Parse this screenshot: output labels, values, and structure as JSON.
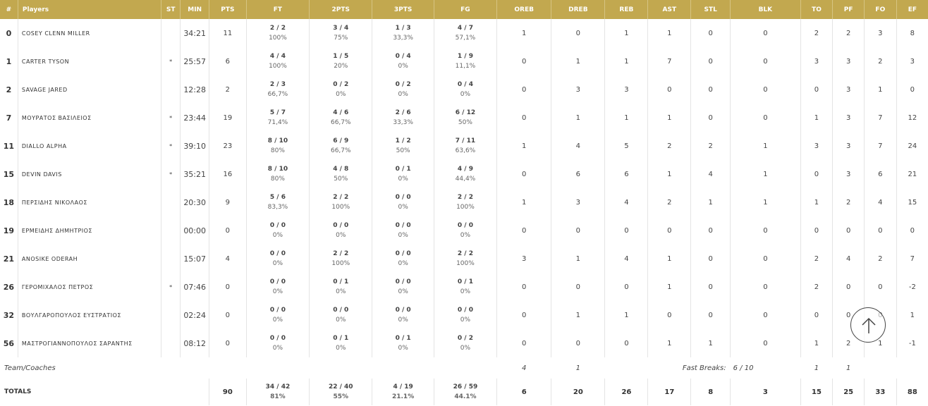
{
  "headers": [
    "#",
    "Players",
    "ST",
    "MIN",
    "PTS",
    "FT",
    "2PTS",
    "3PTS",
    "FG",
    "OREB",
    "DREB",
    "REB",
    "AST",
    "STL",
    "BLK",
    "TO",
    "PF",
    "FO",
    "EF"
  ],
  "players": [
    {
      "num": "0",
      "name": "COSEY CLENN MILLER",
      "st": "",
      "min": "34:21",
      "pts": "11",
      "ft": "2 / 2",
      "ft_pct": "100%",
      "two": "3 / 4",
      "two_pct": "75%",
      "three": "1 / 3",
      "three_pct": "33,3%",
      "fg": "4 / 7",
      "fg_pct": "57,1%",
      "oreb": "1",
      "dreb": "0",
      "reb": "1",
      "ast": "1",
      "stl": "0",
      "blk": "0",
      "to": "2",
      "pf": "2",
      "fo": "3",
      "ef": "8"
    },
    {
      "num": "1",
      "name": "CARTER TYSON",
      "st": "*",
      "min": "25:57",
      "pts": "6",
      "ft": "4 / 4",
      "ft_pct": "100%",
      "two": "1 / 5",
      "two_pct": "20%",
      "three": "0 / 4",
      "three_pct": "0%",
      "fg": "1 / 9",
      "fg_pct": "11,1%",
      "oreb": "0",
      "dreb": "1",
      "reb": "1",
      "ast": "7",
      "stl": "0",
      "blk": "0",
      "to": "3",
      "pf": "3",
      "fo": "2",
      "ef": "3"
    },
    {
      "num": "2",
      "name": "SAVAGE JARED",
      "st": "",
      "min": "12:28",
      "pts": "2",
      "ft": "2 / 3",
      "ft_pct": "66,7%",
      "two": "0 / 2",
      "two_pct": "0%",
      "three": "0 / 2",
      "three_pct": "0%",
      "fg": "0 / 4",
      "fg_pct": "0%",
      "oreb": "0",
      "dreb": "3",
      "reb": "3",
      "ast": "0",
      "stl": "0",
      "blk": "0",
      "to": "0",
      "pf": "3",
      "fo": "1",
      "ef": "0"
    },
    {
      "num": "7",
      "name": "ΜΟΥΡΑΤΟΣ ΒΑΣΙΛΕΙΟΣ",
      "st": "*",
      "min": "23:44",
      "pts": "19",
      "ft": "5 / 7",
      "ft_pct": "71,4%",
      "two": "4 / 6",
      "two_pct": "66,7%",
      "three": "2 / 6",
      "three_pct": "33,3%",
      "fg": "6 / 12",
      "fg_pct": "50%",
      "oreb": "0",
      "dreb": "1",
      "reb": "1",
      "ast": "1",
      "stl": "0",
      "blk": "0",
      "to": "1",
      "pf": "3",
      "fo": "7",
      "ef": "12"
    },
    {
      "num": "11",
      "name": "DIALLO ALPHA",
      "st": "*",
      "min": "39:10",
      "pts": "23",
      "ft": "8 / 10",
      "ft_pct": "80%",
      "two": "6 / 9",
      "two_pct": "66,7%",
      "three": "1 / 2",
      "three_pct": "50%",
      "fg": "7 / 11",
      "fg_pct": "63,6%",
      "oreb": "1",
      "dreb": "4",
      "reb": "5",
      "ast": "2",
      "stl": "2",
      "blk": "1",
      "to": "3",
      "pf": "3",
      "fo": "7",
      "ef": "24"
    },
    {
      "num": "15",
      "name": "DEVIN DAVIS",
      "st": "*",
      "min": "35:21",
      "pts": "16",
      "ft": "8 / 10",
      "ft_pct": "80%",
      "two": "4 / 8",
      "two_pct": "50%",
      "three": "0 / 1",
      "three_pct": "0%",
      "fg": "4 / 9",
      "fg_pct": "44,4%",
      "oreb": "0",
      "dreb": "6",
      "reb": "6",
      "ast": "1",
      "stl": "4",
      "blk": "1",
      "to": "0",
      "pf": "3",
      "fo": "6",
      "ef": "21"
    },
    {
      "num": "18",
      "name": "ΠΕΡΣΙΔΗΣ ΝΙΚΟΛΑΟΣ",
      "st": "",
      "min": "20:30",
      "pts": "9",
      "ft": "5 / 6",
      "ft_pct": "83,3%",
      "two": "2 / 2",
      "two_pct": "100%",
      "three": "0 / 0",
      "three_pct": "0%",
      "fg": "2 / 2",
      "fg_pct": "100%",
      "oreb": "1",
      "dreb": "3",
      "reb": "4",
      "ast": "2",
      "stl": "1",
      "blk": "1",
      "to": "1",
      "pf": "2",
      "fo": "4",
      "ef": "15"
    },
    {
      "num": "19",
      "name": "ΕΡΜΕΙΔΗΣ ΔΗΜΗΤΡΙΟΣ",
      "st": "",
      "min": "00:00",
      "pts": "0",
      "ft": "0 / 0",
      "ft_pct": "0%",
      "two": "0 / 0",
      "two_pct": "0%",
      "three": "0 / 0",
      "three_pct": "0%",
      "fg": "0 / 0",
      "fg_pct": "0%",
      "oreb": "0",
      "dreb": "0",
      "reb": "0",
      "ast": "0",
      "stl": "0",
      "blk": "0",
      "to": "0",
      "pf": "0",
      "fo": "0",
      "ef": "0"
    },
    {
      "num": "21",
      "name": "ANOSIKE ODERAH",
      "st": "",
      "min": "15:07",
      "pts": "4",
      "ft": "0 / 0",
      "ft_pct": "0%",
      "two": "2 / 2",
      "two_pct": "100%",
      "three": "0 / 0",
      "three_pct": "0%",
      "fg": "2 / 2",
      "fg_pct": "100%",
      "oreb": "3",
      "dreb": "1",
      "reb": "4",
      "ast": "1",
      "stl": "0",
      "blk": "0",
      "to": "2",
      "pf": "4",
      "fo": "2",
      "ef": "7"
    },
    {
      "num": "26",
      "name": "ΓΕΡΟΜΙΧΑΛΟΣ ΠΕΤΡΟΣ",
      "st": "*",
      "min": "07:46",
      "pts": "0",
      "ft": "0 / 0",
      "ft_pct": "0%",
      "two": "0 / 1",
      "two_pct": "0%",
      "three": "0 / 0",
      "three_pct": "0%",
      "fg": "0 / 1",
      "fg_pct": "0%",
      "oreb": "0",
      "dreb": "0",
      "reb": "0",
      "ast": "1",
      "stl": "0",
      "blk": "0",
      "to": "2",
      "pf": "0",
      "fo": "0",
      "ef": "-2"
    },
    {
      "num": "32",
      "name": "ΒΟΥΛΓΑΡΟΠΟΥΛΟΣ ΕΥΣΤΡΑΤΙΟΣ",
      "st": "",
      "min": "02:24",
      "pts": "0",
      "ft": "0 / 0",
      "ft_pct": "0%",
      "two": "0 / 0",
      "two_pct": "0%",
      "three": "0 / 0",
      "three_pct": "0%",
      "fg": "0 / 0",
      "fg_pct": "0%",
      "oreb": "0",
      "dreb": "1",
      "reb": "1",
      "ast": "0",
      "stl": "0",
      "blk": "0",
      "to": "0",
      "pf": "0",
      "fo": "0",
      "ef": "1"
    },
    {
      "num": "56",
      "name": "ΜΑΣΤΡΟΓΙΑΝΝΟΠΟΥΛΟΣ ΣΑΡΑΝΤΗΣ",
      "st": "",
      "min": "08:12",
      "pts": "0",
      "ft": "0 / 0",
      "ft_pct": "0%",
      "two": "0 / 1",
      "two_pct": "0%",
      "three": "0 / 1",
      "three_pct": "0%",
      "fg": "0 / 2",
      "fg_pct": "0%",
      "oreb": "0",
      "dreb": "0",
      "reb": "0",
      "ast": "1",
      "stl": "1",
      "blk": "0",
      "to": "1",
      "pf": "2",
      "fo": "1",
      "ef": "-1"
    }
  ],
  "team": {
    "label": "Team/Coaches",
    "oreb": "4",
    "dreb": "1",
    "fast_breaks_label": "Fast Breaks:",
    "fast_breaks": "6 / 10",
    "to": "1",
    "pf": "1"
  },
  "totals": {
    "label": "TOTALS",
    "pts": "90",
    "ft": "34 / 42",
    "ft_pct": "81%",
    "two": "22 / 40",
    "two_pct": "55%",
    "three": "4 / 19",
    "three_pct": "21.1%",
    "fg": "26 / 59",
    "fg_pct": "44.1%",
    "oreb": "6",
    "dreb": "20",
    "reb": "26",
    "ast": "17",
    "stl": "8",
    "blk": "3",
    "to": "15",
    "pf": "25",
    "fo": "33",
    "ef": "88"
  },
  "colors": {
    "header_bg": "#c2a84f",
    "header_text": "#ffffff"
  },
  "icons": {
    "scroll_top": "arrow-up-icon"
  }
}
